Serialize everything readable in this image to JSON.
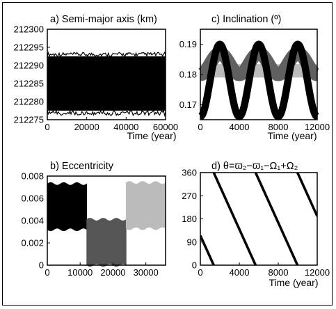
{
  "chart_data": [
    {
      "id": "a",
      "type": "line",
      "title": "a) Semi-major axis (km)",
      "xlabel": "Time (year)",
      "ylabel": "",
      "xlim": [
        0,
        60000
      ],
      "ylim": [
        212275,
        212300
      ],
      "xticks": [
        0,
        20000,
        40000,
        60000
      ],
      "yticks": [
        212275,
        212280,
        212285,
        212290,
        212295,
        212300
      ],
      "series": [
        {
          "color": "#000000",
          "band": {
            "x": [
              0,
              60000
            ],
            "low": 212277.5,
            "high": 212292.5,
            "spike_low": 212276.2,
            "spike_high": 212293.6
          }
        }
      ]
    },
    {
      "id": "b",
      "type": "line",
      "title": "b) Eccentricity",
      "xlabel": "",
      "ylabel": "",
      "xlim": [
        0,
        36000
      ],
      "ylim": [
        0,
        0.008
      ],
      "xticks": [
        0,
        10000,
        20000,
        30000
      ],
      "yticks": [
        "0",
        "0.002",
        "0.004",
        "0.006",
        "0.008"
      ],
      "ytick_values": [
        0,
        0.002,
        0.004,
        0.006,
        0.008
      ],
      "series": [
        {
          "color": "#000000",
          "band": {
            "x": [
              0,
              12000
            ],
            "low": 0.0032,
            "high": 0.0073
          }
        },
        {
          "color": "#555555",
          "band": {
            "x": [
              12000,
              24000
            ],
            "low": 0.0,
            "high": 0.0041
          }
        },
        {
          "color": "#bbbbbb",
          "band": {
            "x": [
              24000,
              36000
            ],
            "low": 0.0033,
            "high": 0.0074
          }
        }
      ]
    },
    {
      "id": "c",
      "type": "line",
      "title": "c) Inclination (º)",
      "xlabel": "Time (year)",
      "ylabel": "",
      "xlim": [
        0,
        12000
      ],
      "ylim": [
        0.165,
        0.195
      ],
      "xticks": [
        0,
        4000,
        8000,
        12000
      ],
      "yticks": [
        "0.17",
        "0.18",
        "0.19"
      ],
      "ytick_values": [
        0.17,
        0.18,
        0.19
      ],
      "series": [
        {
          "color": "#000000",
          "center": 0.178,
          "amplitude": 0.012,
          "period": 4000,
          "phase": 0,
          "width": 0.0012
        },
        {
          "color": "#606060",
          "center": 0.1835,
          "amplitude": 0.0035,
          "period": 4000,
          "phase": 0,
          "width": 0.0022
        },
        {
          "color": "#bbbbbb",
          "center": 0.1812,
          "amplitude": 0.0,
          "period": 4000,
          "phase": 0,
          "width": 0.0022
        }
      ]
    },
    {
      "id": "d",
      "type": "scatter",
      "title": "d) θ=ϖ₂−ϖ₁−Ω₁+Ω₂",
      "xlabel": "Time (year)",
      "ylabel": "",
      "xlim": [
        0,
        12000
      ],
      "ylim": [
        0,
        360
      ],
      "xticks": [
        0,
        4000,
        8000,
        12000
      ],
      "yticks": [
        0,
        90,
        180,
        270,
        360
      ],
      "series": [
        {
          "color": "#000000",
          "period": 4300,
          "offset": 115,
          "bandwidth": 16
        }
      ]
    }
  ]
}
